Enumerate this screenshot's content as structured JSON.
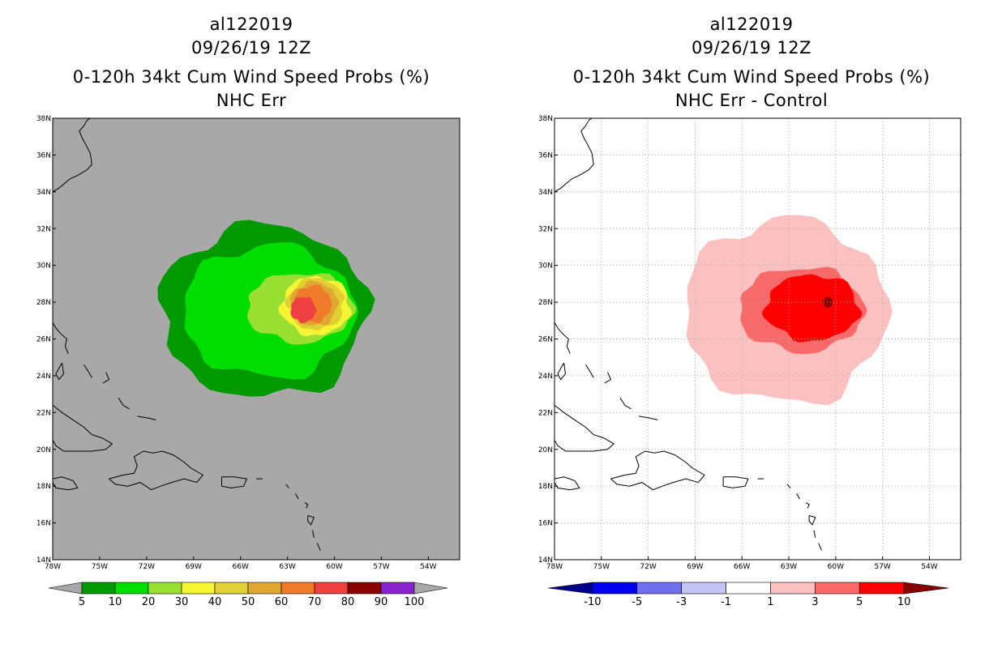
{
  "panels": [
    {
      "id": "left",
      "title_lines": [
        "al122019",
        "09/26/19 12Z",
        "0-120h 34kt Cum Wind Speed Probs (%)",
        "NHC Err"
      ],
      "background": "#a8a8a8",
      "land_fill": "#a8a8a8",
      "grid": "none",
      "colorbar": {
        "colors": [
          "#a8a8a8",
          "#009900",
          "#00dd00",
          "#99e033",
          "#f5f533",
          "#e0d033",
          "#e0a833",
          "#ee7a2a",
          "#ee4040",
          "#880000",
          "#8822cc",
          "#a8a8a8"
        ],
        "labels": [
          "5",
          "10",
          "20",
          "30",
          "40",
          "50",
          "60",
          "70",
          "80",
          "90",
          "100"
        ]
      }
    },
    {
      "id": "right",
      "title_lines": [
        "al122019",
        "09/26/19 12Z",
        "0-120h 34kt Cum Wind Speed Probs (%)",
        "NHC Err - Control"
      ],
      "background": "#ffffff",
      "land_fill": "#ffffff",
      "grid": "dotted",
      "colorbar": {
        "colors": [
          "#000088",
          "#0000ee",
          "#7070ee",
          "#c4c4f4",
          "#ffffff",
          "#fbc0c0",
          "#f86a6a",
          "#ff0000",
          "#880000"
        ],
        "labels": [
          "-10",
          "-5",
          "-3",
          "-1",
          "1",
          "3",
          "5",
          "10"
        ]
      }
    }
  ],
  "chart_data": {
    "type": "heatmap",
    "storm": "al122019",
    "valid": "09/26/19 12Z",
    "x_ticks": [
      "78W",
      "75W",
      "72W",
      "69W",
      "66W",
      "63W",
      "60W",
      "57W",
      "54W"
    ],
    "y_ticks": [
      "14N",
      "16N",
      "18N",
      "20N",
      "22N",
      "24N",
      "26N",
      "28N",
      "30N",
      "32N",
      "34N",
      "36N",
      "38N"
    ],
    "lon_range": [
      -78,
      -52
    ],
    "lat_range": [
      14,
      38
    ],
    "left_contours": [
      {
        "level": 5,
        "color": "#009900",
        "center": [
          -64.5,
          27.5
        ],
        "rx": 6.6,
        "ry": 4.7
      },
      {
        "level": 10,
        "color": "#00dd00",
        "center": [
          -64.2,
          27.5
        ],
        "rx": 5.5,
        "ry": 3.6
      },
      {
        "level": 20,
        "color": "#99e033",
        "center": [
          -62.2,
          27.7
        ],
        "rx": 3.4,
        "ry": 1.9
      },
      {
        "level": 30,
        "color": "#f5f533",
        "center": [
          -61.2,
          27.8
        ],
        "rx": 2.2,
        "ry": 1.6
      },
      {
        "level": 40,
        "color": "#e0d033",
        "center": [
          -61.2,
          27.9
        ],
        "rx": 1.8,
        "ry": 1.4
      },
      {
        "level": 50,
        "color": "#e0a833",
        "center": [
          -61.3,
          27.9
        ],
        "rx": 1.5,
        "ry": 1.2
      },
      {
        "level": 60,
        "color": "#ee7a2a",
        "center": [
          -61.4,
          27.9
        ],
        "rx": 1.2,
        "ry": 1.0
      },
      {
        "level": 70,
        "color": "#ee4040",
        "center": [
          -62.0,
          27.6
        ],
        "rx": 0.8,
        "ry": 0.7
      }
    ],
    "right_contours": [
      {
        "level": 1,
        "color": "#fbc0c0",
        "center": [
          -63.2,
          27.5
        ],
        "rx": 6.5,
        "ry": 5.0
      },
      {
        "level": 3,
        "color": "#f86a6a",
        "center": [
          -62.2,
          27.6
        ],
        "rx": 4.0,
        "ry": 2.3
      },
      {
        "level": 5,
        "color": "#ff0000",
        "center": [
          -61.5,
          27.7
        ],
        "rx": 3.0,
        "ry": 1.8
      },
      {
        "level": 10,
        "color": "#880000",
        "center": [
          -60.5,
          28.0
        ],
        "rx": 0.3,
        "ry": 0.3
      }
    ]
  }
}
